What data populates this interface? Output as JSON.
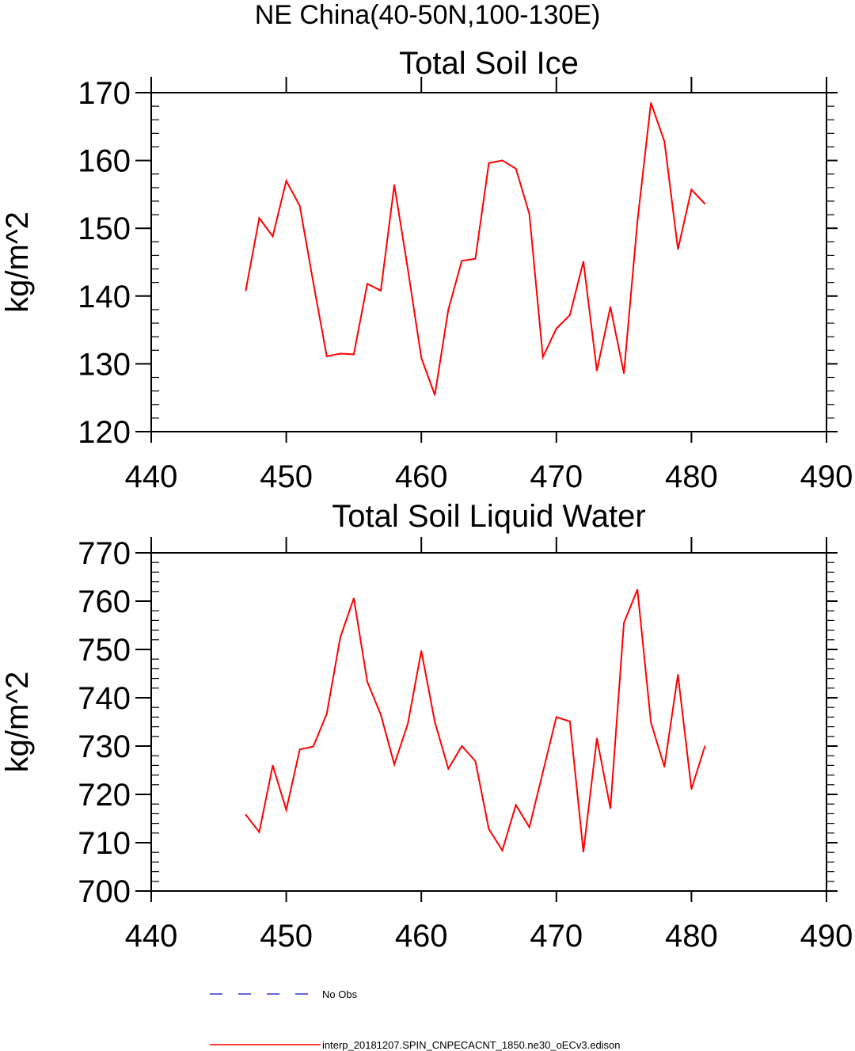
{
  "figure": {
    "title": "NE China(40-50N,100-130E)",
    "legend": [
      {
        "label": "No Obs",
        "color": "#3333cc",
        "style": "dashed"
      },
      {
        "label": "interp_20181207.SPIN_CNPECACNT_1850.ne30_oECv3.edison",
        "color": "#ff0000",
        "style": "solid"
      }
    ]
  },
  "chart_data": [
    {
      "type": "line",
      "title": "Total Soil Ice",
      "xlabel": "",
      "ylabel": "kg/m^2",
      "xlim": [
        440,
        490
      ],
      "ylim": [
        120,
        170
      ],
      "xticks": [
        440,
        450,
        460,
        470,
        480,
        490
      ],
      "yticks": [
        120,
        130,
        140,
        150,
        160,
        170
      ],
      "grid": false,
      "series": [
        {
          "name": "interp_20181207.SPIN_CNPECACNT_1850.ne30_oECv3.edison",
          "color": "#ff0000",
          "x": [
            447,
            448,
            449,
            450,
            451,
            452,
            453,
            454,
            455,
            456,
            457,
            458,
            459,
            460,
            461,
            462,
            463,
            464,
            465,
            466,
            467,
            468,
            469,
            470,
            471,
            472,
            473,
            474,
            475,
            476,
            477,
            478,
            479,
            480,
            481
          ],
          "y": [
            140.8,
            151.5,
            148.8,
            157.0,
            153.3,
            142.0,
            131.1,
            131.5,
            131.4,
            141.8,
            140.8,
            156.4,
            144.0,
            130.9,
            125.4,
            138.0,
            145.2,
            145.5,
            159.6,
            160.0,
            158.8,
            152.1,
            131.0,
            135.2,
            137.2,
            145.1,
            129.0,
            138.4,
            128.6,
            151.0,
            168.5,
            162.8,
            146.9,
            155.7,
            153.6
          ]
        }
      ]
    },
    {
      "type": "line",
      "title": "Total Soil Liquid Water",
      "xlabel": "",
      "ylabel": "kg/m^2",
      "xlim": [
        440,
        490
      ],
      "ylim": [
        700,
        770
      ],
      "xticks": [
        440,
        450,
        460,
        470,
        480,
        490
      ],
      "yticks": [
        700,
        710,
        720,
        730,
        740,
        750,
        760,
        770
      ],
      "grid": false,
      "series": [
        {
          "name": "interp_20181207.SPIN_CNPECACNT_1850.ne30_oECv3.edison",
          "color": "#ff0000",
          "x": [
            447,
            448,
            449,
            450,
            451,
            452,
            453,
            454,
            455,
            456,
            457,
            458,
            459,
            460,
            461,
            462,
            463,
            464,
            465,
            466,
            467,
            468,
            469,
            470,
            471,
            472,
            473,
            474,
            475,
            476,
            477,
            478,
            479,
            480,
            481
          ],
          "y": [
            715.8,
            712.2,
            726.0,
            716.8,
            729.3,
            729.9,
            736.7,
            752.5,
            760.6,
            743.3,
            736.5,
            726.2,
            734.6,
            749.7,
            735.0,
            725.3,
            730.0,
            726.9,
            712.8,
            708.4,
            717.8,
            713.2,
            724.6,
            736.0,
            735.1,
            708.1,
            731.6,
            717.1,
            755.5,
            762.4,
            734.9,
            725.7,
            744.8,
            721.1,
            730.0
          ]
        }
      ]
    }
  ]
}
